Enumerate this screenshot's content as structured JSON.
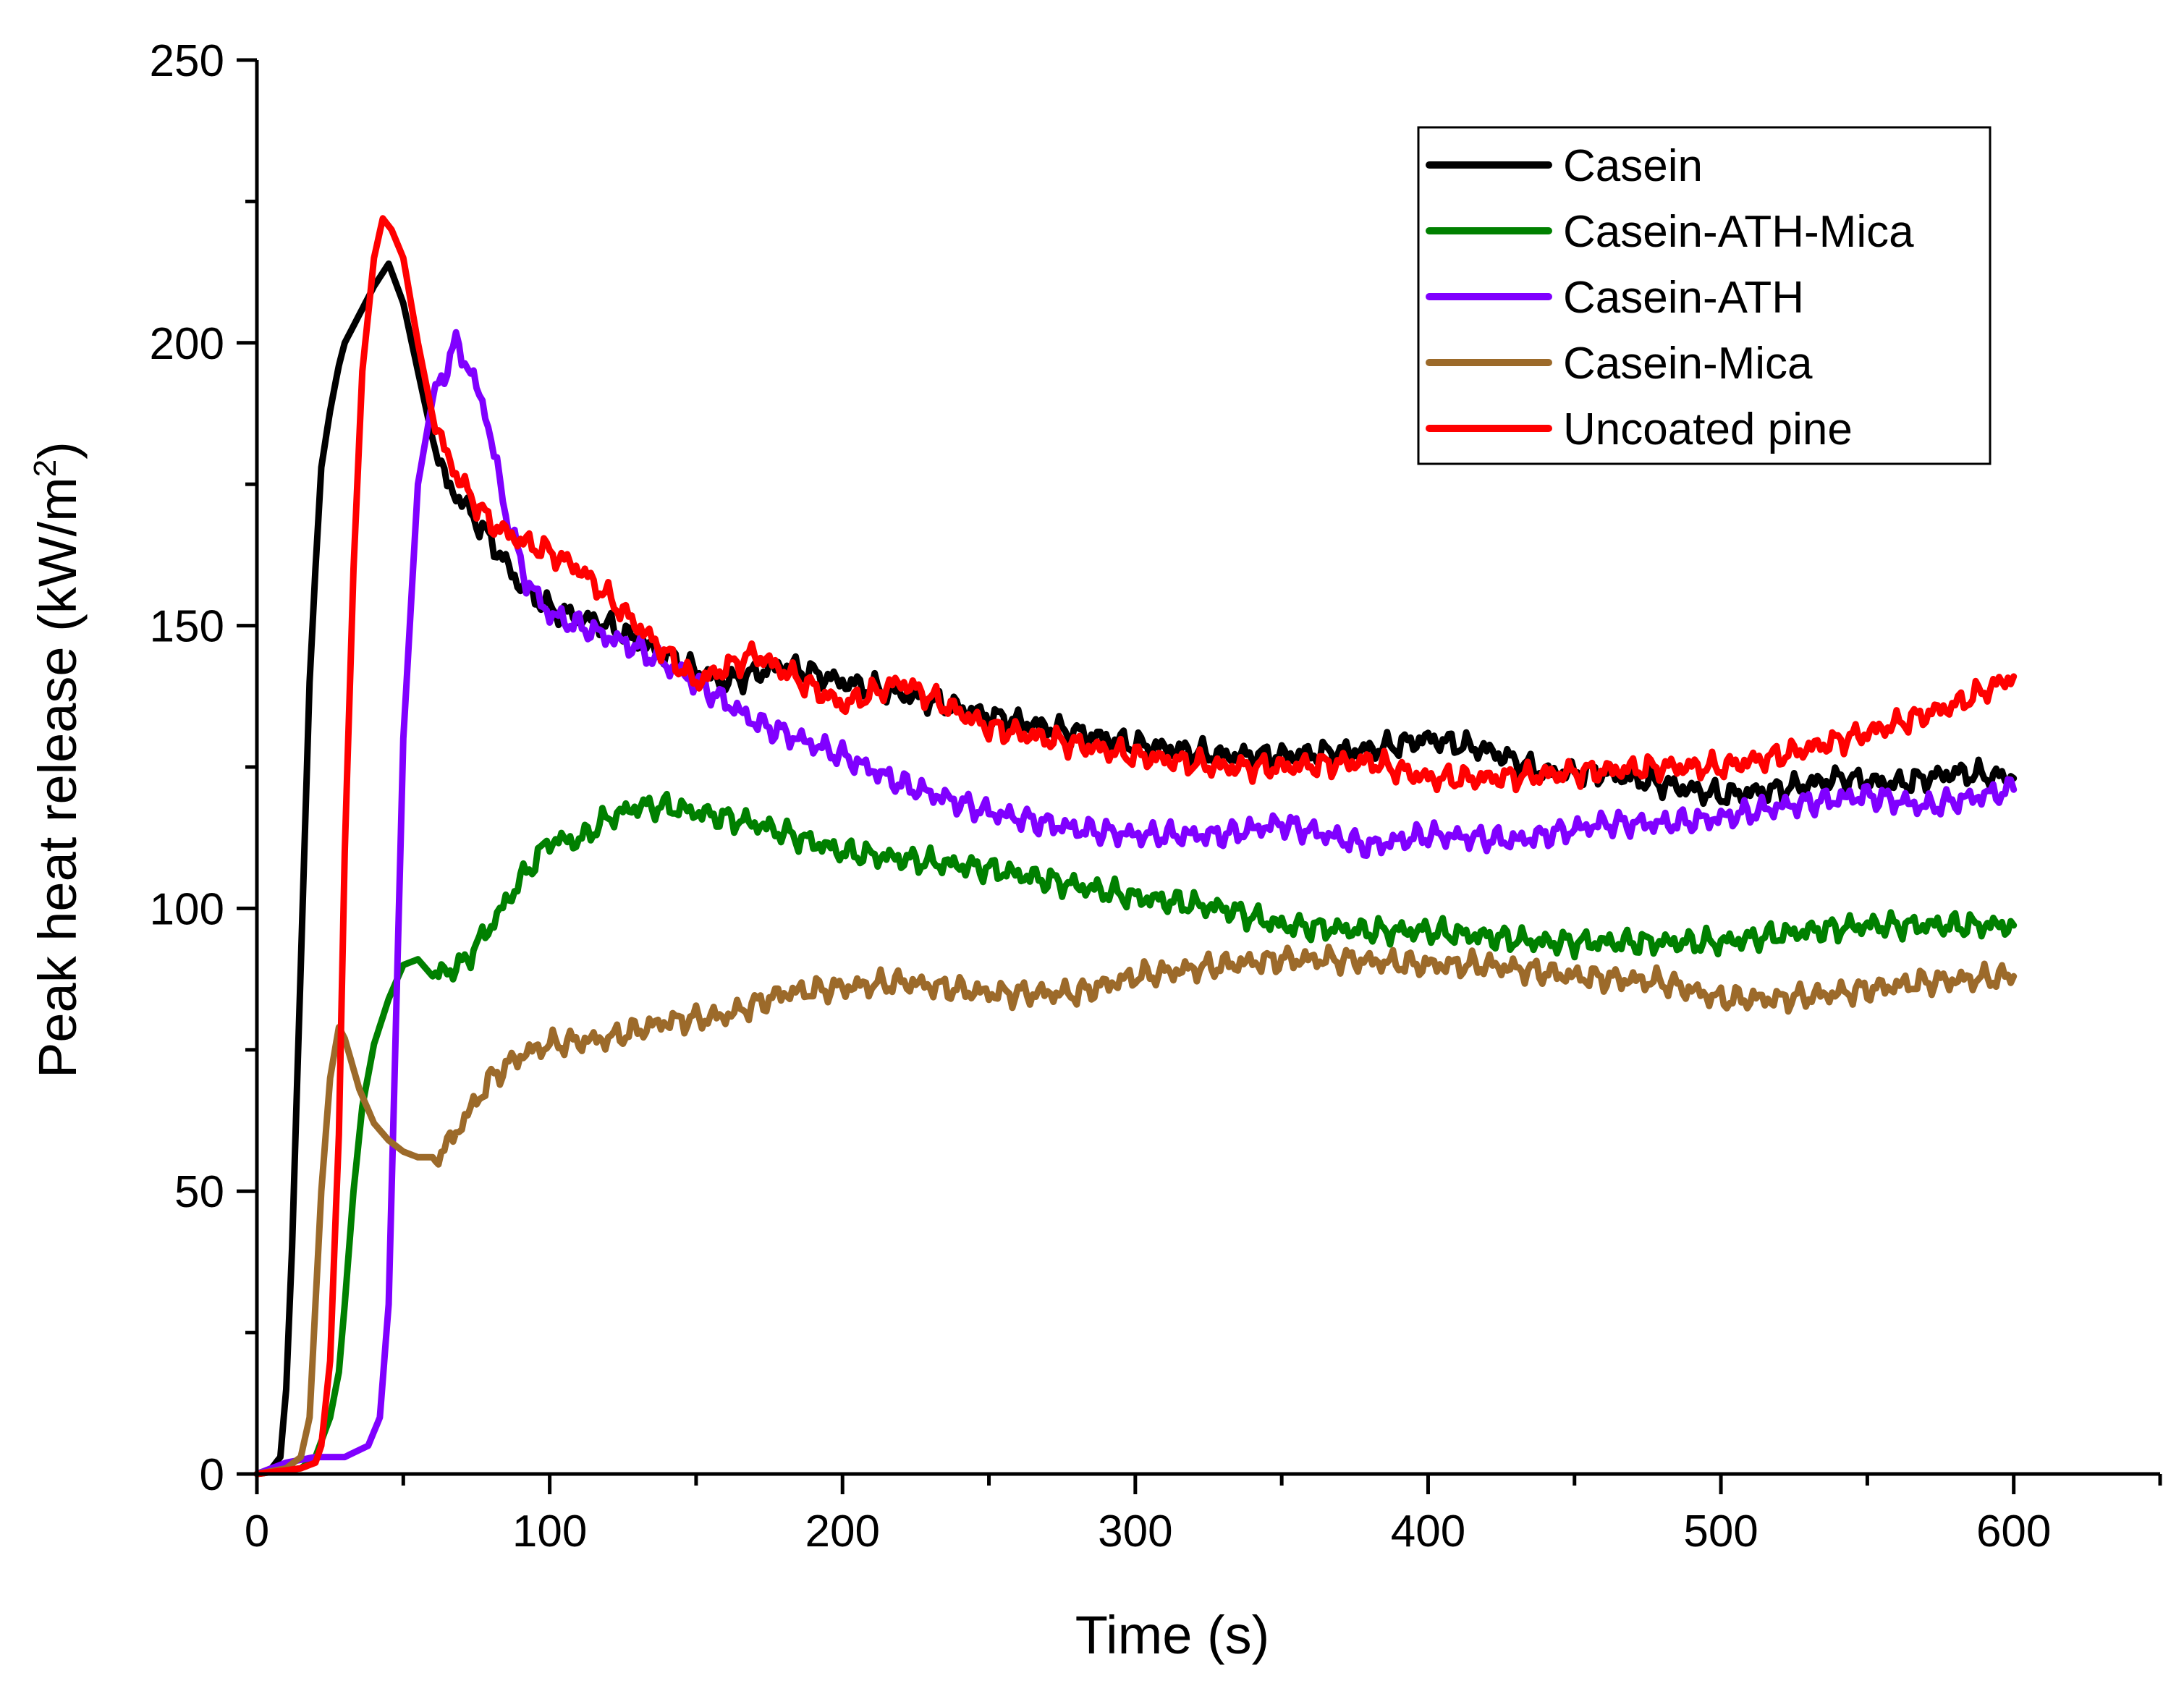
{
  "chart_data": {
    "type": "line",
    "title": "",
    "xlabel": "Time (s)",
    "ylabel": "Peak heat release (kW/m²)",
    "ylabel_main": "Peak heat release (kW/m",
    "ylabel_sup": "2",
    "ylabel_close": ")",
    "xlim": [
      0,
      650
    ],
    "ylim": [
      0,
      250
    ],
    "x_ticks": [
      0,
      100,
      200,
      300,
      400,
      500,
      600
    ],
    "y_ticks": [
      0,
      50,
      100,
      150,
      200,
      250
    ],
    "x_tick_labels": [
      "0",
      "100",
      "200",
      "300",
      "400",
      "500",
      "600"
    ],
    "y_tick_labels": [
      "0",
      "50",
      "100",
      "150",
      "200",
      "250"
    ],
    "legend_position": "top-right",
    "series": [
      {
        "name": "Casein",
        "color": "#000000",
        "x": [
          0,
          5,
          8,
          10,
          12,
          15,
          18,
          20,
          22,
          25,
          28,
          30,
          35,
          40,
          45,
          50,
          55,
          60,
          65,
          70,
          80,
          90,
          100,
          120,
          150,
          160,
          180,
          200,
          220,
          250,
          300,
          330,
          350,
          380,
          400,
          420,
          440,
          460,
          480,
          500,
          520,
          540,
          560,
          580,
          600
        ],
        "y": [
          0,
          1,
          3,
          15,
          40,
          90,
          140,
          160,
          178,
          188,
          196,
          200,
          205,
          210,
          214,
          207,
          195,
          183,
          175,
          172,
          165,
          157,
          153,
          150,
          142,
          140,
          143,
          140,
          138,
          134,
          129,
          127,
          127,
          128,
          130,
          128,
          124,
          124,
          122,
          120,
          121,
          123,
          122,
          124,
          123
        ]
      },
      {
        "name": "Casein-ATH-Mica",
        "color": "#008000",
        "x": [
          0,
          15,
          20,
          25,
          28,
          30,
          33,
          36,
          40,
          45,
          50,
          55,
          60,
          70,
          80,
          90,
          100,
          110,
          120,
          130,
          140,
          150,
          170,
          200,
          250,
          300,
          330,
          350,
          380,
          400,
          440,
          470,
          500,
          530,
          550,
          580,
          600
        ],
        "y": [
          0,
          1,
          3,
          10,
          18,
          30,
          50,
          65,
          76,
          84,
          90,
          91,
          88,
          90,
          97,
          105,
          112,
          112,
          116,
          118,
          118,
          117,
          115,
          110,
          107,
          102,
          100,
          97,
          96,
          96,
          94,
          94,
          94,
          96,
          97,
          97,
          97
        ]
      },
      {
        "name": "Casein-ATH",
        "color": "#8000ff",
        "x": [
          0,
          10,
          20,
          30,
          38,
          42,
          45,
          48,
          50,
          55,
          60,
          65,
          68,
          72,
          78,
          85,
          92,
          100,
          110,
          130,
          150,
          170,
          200,
          220,
          250,
          280,
          300,
          330,
          350,
          380,
          400,
          430,
          460,
          480,
          500,
          520,
          550,
          570,
          600
        ],
        "y": [
          0,
          2,
          3,
          3,
          5,
          10,
          30,
          90,
          130,
          175,
          190,
          196,
          200,
          196,
          188,
          170,
          158,
          152,
          150,
          146,
          140,
          133,
          127,
          122,
          117,
          114,
          113,
          113,
          115,
          111,
          113,
          112,
          115,
          115,
          116,
          118,
          120,
          118,
          121
        ]
      },
      {
        "name": "Casein-Mica",
        "color": "#9c6a2a",
        "x": [
          0,
          10,
          15,
          18,
          20,
          22,
          25,
          28,
          30,
          35,
          40,
          45,
          50,
          55,
          60,
          65,
          70,
          80,
          90,
          100,
          120,
          140,
          160,
          180,
          200,
          220,
          250,
          280,
          300,
          330,
          350,
          370,
          400,
          420,
          450,
          480,
          500,
          520,
          540,
          570,
          600
        ],
        "y": [
          0,
          1,
          3,
          10,
          30,
          50,
          70,
          79,
          77,
          68,
          62,
          59,
          57,
          56,
          56,
          58,
          62,
          70,
          74,
          76,
          77,
          80,
          81,
          85,
          86,
          87,
          85,
          85,
          88,
          90,
          91,
          91,
          90,
          90,
          88,
          87,
          84,
          84,
          85,
          87,
          88
        ]
      },
      {
        "name": "Uncoated pine",
        "color": "#ff0000",
        "x": [
          0,
          15,
          20,
          22,
          25,
          28,
          30,
          33,
          36,
          40,
          43,
          46,
          50,
          55,
          60,
          65,
          70,
          80,
          90,
          100,
          110,
          130,
          150,
          170,
          190,
          200,
          220,
          250,
          280,
          300,
          330,
          350,
          380,
          400,
          420,
          450,
          480,
          500,
          520,
          550,
          580,
          600
        ],
        "y": [
          0,
          1,
          2,
          5,
          20,
          60,
          110,
          160,
          195,
          215,
          222,
          220,
          215,
          200,
          187,
          180,
          175,
          168,
          165,
          163,
          160,
          150,
          140,
          145,
          139,
          136,
          140,
          132,
          129,
          127,
          125,
          125,
          126,
          123,
          123,
          124,
          125,
          125,
          127,
          131,
          136,
          141
        ]
      }
    ]
  }
}
